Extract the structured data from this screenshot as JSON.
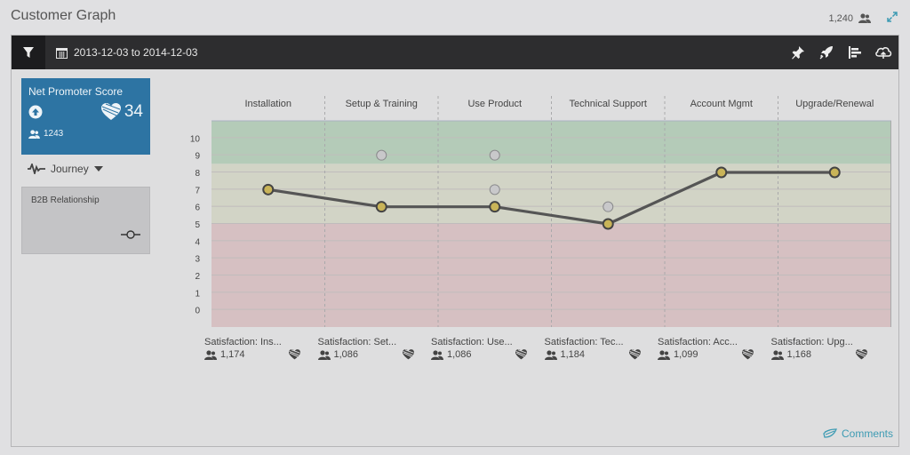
{
  "page": {
    "title": "Customer Graph"
  },
  "header": {
    "user_count": "1,240",
    "user_icon": "users-icon",
    "expand_icon": "expand-icon"
  },
  "toolbar": {
    "filter_icon": "filter-icon",
    "calendar_icon": "calendar-icon",
    "date_range": "2013-12-03 to 2014-12-03",
    "tools": [
      "pin-icon",
      "rocket-icon",
      "bar-chart-icon",
      "cloud-upload-icon"
    ]
  },
  "nps": {
    "title": "Net Promoter Score",
    "score": "34",
    "count": "1243",
    "color": "#2d74a3"
  },
  "journey": {
    "label": "Journey"
  },
  "b2b": {
    "label": "B2B Relationship"
  },
  "chart_data": {
    "type": "line",
    "categories": [
      "Installation",
      "Setup & Training",
      "Use Product",
      "Technical Support",
      "Account Mgmt",
      "Upgrade/Renewal"
    ],
    "y_ticks": [
      "10",
      "9",
      "8",
      "7",
      "6",
      "5",
      "4",
      "3",
      "2",
      "1",
      "0"
    ],
    "ylim": [
      -1,
      11
    ],
    "series": [
      {
        "values": [
          7,
          6,
          6,
          5,
          8,
          8
        ],
        "color": "#555555",
        "marker_color": "#c9b458"
      }
    ],
    "secondary_points": [
      {
        "category_index": 1,
        "value": 9
      },
      {
        "category_index": 2,
        "value": 9
      },
      {
        "category_index": 2,
        "value": 7
      },
      {
        "category_index": 3,
        "value": 6
      }
    ],
    "bands": [
      {
        "from": 8.5,
        "to": 11,
        "color": "#b4cbb8"
      },
      {
        "from": 5,
        "to": 8.5,
        "color": "#d2d4c6"
      },
      {
        "from": -1,
        "to": 5,
        "color": "#d6c0c2"
      }
    ],
    "grid": true
  },
  "stages": [
    {
      "label": "Satisfaction: Ins...",
      "count": "1,174"
    },
    {
      "label": "Satisfaction: Set...",
      "count": "1,086"
    },
    {
      "label": "Satisfaction: Use...",
      "count": "1,086"
    },
    {
      "label": "Satisfaction: Tec...",
      "count": "1,184"
    },
    {
      "label": "Satisfaction: Acc...",
      "count": "1,099"
    },
    {
      "label": "Satisfaction: Upg...",
      "count": "1,168"
    }
  ],
  "comments": {
    "label": "Comments"
  }
}
